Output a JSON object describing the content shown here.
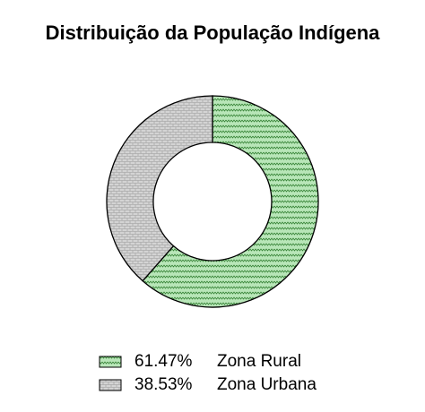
{
  "chart_data": {
    "type": "donut",
    "title": "Distribuição da População Indígena",
    "categories": [
      "Zona Rural",
      "Zona Urbana"
    ],
    "values": [
      61.47,
      38.53
    ],
    "value_labels": [
      "61.47%",
      "38.53%"
    ],
    "colors": [
      "#b8e6b8",
      "#d4d4d4"
    ]
  }
}
